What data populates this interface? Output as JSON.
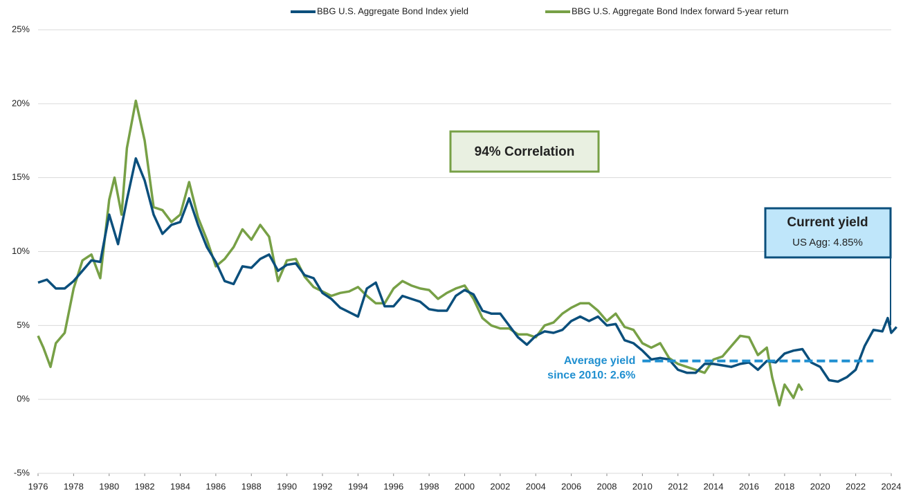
{
  "chart_data": {
    "type": "line",
    "xlim": [
      1976,
      2024
    ],
    "xticks": [
      1976,
      1978,
      1980,
      1982,
      1984,
      1986,
      1988,
      1990,
      1992,
      1994,
      1996,
      1998,
      2000,
      2002,
      2004,
      2006,
      2008,
      2010,
      2012,
      2014,
      2016,
      2018,
      2020,
      2022,
      2024
    ],
    "ylim": [
      -5,
      25
    ],
    "yticks": [
      {
        "value": -5,
        "label": "-5%"
      },
      {
        "value": 0,
        "label": "0%"
      },
      {
        "value": 5,
        "label": "5%"
      },
      {
        "value": 10,
        "label": "10%"
      },
      {
        "value": 15,
        "label": "15%"
      },
      {
        "value": 20,
        "label": "20%"
      },
      {
        "value": 25,
        "label": "25%"
      }
    ],
    "grid": true,
    "series": [
      {
        "name": "BBG U.S. Aggregate Bond Index yield",
        "color": "#0b4f7c",
        "x": [
          1976,
          1976.5,
          1977,
          1977.5,
          1978,
          1978.5,
          1979,
          1979.5,
          1980,
          1980.5,
          1981,
          1981.5,
          1982,
          1982.5,
          1983,
          1983.5,
          1984,
          1984.5,
          1985,
          1985.5,
          1986,
          1986.5,
          1987,
          1987.5,
          1988,
          1988.5,
          1989,
          1989.5,
          1990,
          1990.5,
          1991,
          1991.5,
          1992,
          1992.5,
          1993,
          1993.5,
          1994,
          1994.5,
          1995,
          1995.5,
          1996,
          1996.5,
          1997,
          1997.5,
          1998,
          1998.5,
          1999,
          1999.5,
          2000,
          2000.5,
          2001,
          2001.5,
          2002,
          2002.5,
          2003,
          2003.5,
          2004,
          2004.5,
          2005,
          2005.5,
          2006,
          2006.5,
          2007,
          2007.5,
          2008,
          2008.5,
          2009,
          2009.5,
          2010,
          2010.5,
          2011,
          2011.5,
          2012,
          2012.5,
          2013,
          2013.5,
          2014,
          2014.5,
          2015,
          2015.5,
          2016,
          2016.5,
          2017,
          2017.5,
          2018,
          2018.5,
          2019,
          2019.5,
          2020,
          2020.5,
          2021,
          2021.5,
          2022,
          2022.5,
          2023,
          2023.5,
          2023.8,
          2024,
          2024.3
        ],
        "values": [
          7.9,
          8.1,
          7.5,
          7.5,
          8.0,
          8.7,
          9.4,
          9.3,
          12.5,
          10.5,
          13.5,
          16.3,
          14.8,
          12.5,
          11.2,
          11.8,
          12.0,
          13.6,
          11.8,
          10.3,
          9.3,
          8.0,
          7.8,
          9.0,
          8.9,
          9.5,
          9.8,
          8.7,
          9.1,
          9.2,
          8.4,
          8.2,
          7.2,
          6.8,
          6.2,
          5.9,
          5.6,
          7.5,
          7.9,
          6.3,
          6.3,
          7.0,
          6.8,
          6.6,
          6.1,
          6.0,
          6.0,
          7.0,
          7.4,
          7.1,
          6.0,
          5.8,
          5.8,
          5.0,
          4.2,
          3.7,
          4.3,
          4.6,
          4.5,
          4.7,
          5.3,
          5.6,
          5.3,
          5.6,
          5.0,
          5.1,
          4.0,
          3.8,
          3.3,
          2.7,
          2.8,
          2.7,
          2.0,
          1.8,
          1.8,
          2.4,
          2.4,
          2.3,
          2.2,
          2.4,
          2.5,
          2.0,
          2.6,
          2.5,
          3.1,
          3.3,
          3.4,
          2.5,
          2.2,
          1.3,
          1.2,
          1.5,
          2.0,
          3.6,
          4.7,
          4.6,
          5.5,
          4.5,
          4.9
        ]
      },
      {
        "name": "BBG U.S. Aggregate Bond Index forward 5-year return",
        "color": "#77a046",
        "x": [
          1976,
          1976.3,
          1976.7,
          1977,
          1977.5,
          1978,
          1978.5,
          1979,
          1979.5,
          1980,
          1980.3,
          1980.7,
          1981,
          1981.5,
          1982,
          1982.5,
          1983,
          1983.5,
          1984,
          1984.5,
          1985,
          1985.5,
          1986,
          1986.5,
          1987,
          1987.5,
          1988,
          1988.5,
          1989,
          1989.5,
          1990,
          1990.5,
          1991,
          1991.5,
          1992,
          1992.5,
          1993,
          1993.5,
          1994,
          1994.5,
          1995,
          1995.5,
          1996,
          1996.5,
          1997,
          1997.5,
          1998,
          1998.5,
          1999,
          1999.5,
          2000,
          2000.5,
          2001,
          2001.5,
          2002,
          2002.5,
          2003,
          2003.5,
          2004,
          2004.5,
          2005,
          2005.5,
          2006,
          2006.5,
          2007,
          2007.5,
          2008,
          2008.5,
          2009,
          2009.5,
          2010,
          2010.5,
          2011,
          2011.5,
          2012,
          2012.5,
          2013,
          2013.5,
          2014,
          2014.5,
          2015,
          2015.5,
          2016,
          2016.5,
          2017,
          2017.3,
          2017.7,
          2018,
          2018.5,
          2018.8,
          2019
        ],
        "values": [
          4.3,
          3.5,
          2.2,
          3.8,
          4.5,
          7.5,
          9.4,
          9.8,
          8.2,
          13.5,
          15.0,
          12.5,
          17.0,
          20.2,
          17.5,
          13.0,
          12.8,
          12.0,
          12.5,
          14.7,
          12.3,
          10.8,
          9.0,
          9.5,
          10.3,
          11.5,
          10.8,
          11.8,
          11.0,
          8.0,
          9.4,
          9.5,
          8.3,
          7.6,
          7.3,
          7.0,
          7.2,
          7.3,
          7.6,
          7.0,
          6.5,
          6.5,
          7.5,
          8.0,
          7.7,
          7.5,
          7.4,
          6.8,
          7.2,
          7.5,
          7.7,
          6.8,
          5.5,
          5.0,
          4.8,
          4.8,
          4.4,
          4.4,
          4.2,
          5.0,
          5.2,
          5.8,
          6.2,
          6.5,
          6.5,
          6.0,
          5.3,
          5.8,
          4.9,
          4.7,
          3.8,
          3.5,
          3.8,
          2.8,
          2.4,
          2.2,
          2.0,
          1.8,
          2.7,
          2.9,
          3.6,
          4.3,
          4.2,
          3.0,
          3.5,
          1.5,
          -0.4,
          1.0,
          0.1,
          1.0,
          0.6
        ]
      }
    ],
    "reference_line": {
      "value": 2.6,
      "x": [
        2010,
        2023
      ],
      "color": "#1f8fd0",
      "label": [
        "Average yield",
        "since 2010: 2.6%"
      ]
    },
    "annotations": [
      {
        "text": "94% Correlation"
      },
      {
        "title": "Current yield",
        "text": "US Agg: 4.85%"
      }
    ]
  }
}
